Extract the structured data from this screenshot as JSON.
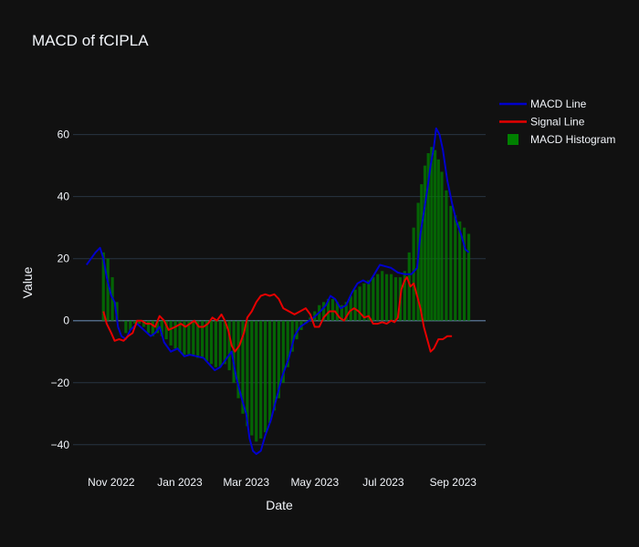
{
  "chart_data": {
    "type": "line",
    "title": "MACD of fCIPLA",
    "xlabel": "Date",
    "ylabel": "Value",
    "ylim": [
      -48,
      74
    ],
    "xlim": [
      "2022-09-28",
      "2023-09-30"
    ],
    "x_ticks": [
      {
        "date": "2022-11-01",
        "label": "Nov 2022"
      },
      {
        "date": "2023-01-01",
        "label": "Jan 2023"
      },
      {
        "date": "2023-03-01",
        "label": "Mar 2023"
      },
      {
        "date": "2023-05-01",
        "label": "May 2023"
      },
      {
        "date": "2023-07-01",
        "label": "Jul 2023"
      },
      {
        "date": "2023-09-01",
        "label": "Sep 2023"
      }
    ],
    "y_ticks": [
      -40,
      -20,
      0,
      20,
      40,
      60
    ],
    "grid": true,
    "legend_position": "top-right",
    "background": "#111111",
    "grid_color": "#283442",
    "series": [
      {
        "name": "MACD Line",
        "kind": "line",
        "color": "#0000cc",
        "points": [
          [
            "2022-10-10",
            18
          ],
          [
            "2022-10-14",
            20
          ],
          [
            "2022-10-18",
            22
          ],
          [
            "2022-10-22",
            23.5
          ],
          [
            "2022-10-25",
            20
          ],
          [
            "2022-10-28",
            14
          ],
          [
            "2022-11-01",
            8
          ],
          [
            "2022-11-04",
            6
          ],
          [
            "2022-11-07",
            -2
          ],
          [
            "2022-11-10",
            -5
          ],
          [
            "2022-11-14",
            -6
          ],
          [
            "2022-11-18",
            -3
          ],
          [
            "2022-11-24",
            -1
          ],
          [
            "2022-11-30",
            -3
          ],
          [
            "2022-12-06",
            -5
          ],
          [
            "2022-12-10",
            -4
          ],
          [
            "2022-12-14",
            -2
          ],
          [
            "2022-12-18",
            -7
          ],
          [
            "2022-12-24",
            -10
          ],
          [
            "2022-12-30",
            -9
          ],
          [
            "2023-01-05",
            -11.5
          ],
          [
            "2023-01-10",
            -11
          ],
          [
            "2023-01-16",
            -11.5
          ],
          [
            "2023-01-22",
            -12
          ],
          [
            "2023-01-27",
            -14
          ],
          [
            "2023-02-01",
            -16
          ],
          [
            "2023-02-06",
            -15
          ],
          [
            "2023-02-12",
            -12
          ],
          [
            "2023-02-16",
            -10
          ],
          [
            "2023-02-20",
            -18
          ],
          [
            "2023-02-25",
            -25
          ],
          [
            "2023-03-01",
            -30
          ],
          [
            "2023-03-04",
            -38
          ],
          [
            "2023-03-07",
            -42
          ],
          [
            "2023-03-10",
            -43
          ],
          [
            "2023-03-14",
            -42
          ],
          [
            "2023-03-18",
            -37
          ],
          [
            "2023-03-23",
            -32
          ],
          [
            "2023-03-28",
            -25
          ],
          [
            "2023-04-02",
            -18
          ],
          [
            "2023-04-08",
            -12
          ],
          [
            "2023-04-13",
            -5
          ],
          [
            "2023-04-18",
            -2
          ],
          [
            "2023-04-24",
            -0.5
          ],
          [
            "2023-04-30",
            1
          ],
          [
            "2023-05-06",
            3
          ],
          [
            "2023-05-11",
            5
          ],
          [
            "2023-05-15",
            8
          ],
          [
            "2023-05-19",
            7
          ],
          [
            "2023-05-24",
            4
          ],
          [
            "2023-05-29",
            5
          ],
          [
            "2023-06-03",
            9
          ],
          [
            "2023-06-08",
            12
          ],
          [
            "2023-06-13",
            13
          ],
          [
            "2023-06-18",
            12
          ],
          [
            "2023-06-23",
            15
          ],
          [
            "2023-06-28",
            18
          ],
          [
            "2023-07-03",
            17.5
          ],
          [
            "2023-07-08",
            17
          ],
          [
            "2023-07-14",
            15.5
          ],
          [
            "2023-07-20",
            15
          ],
          [
            "2023-07-26",
            15
          ],
          [
            "2023-07-31",
            17
          ],
          [
            "2023-08-03",
            28
          ],
          [
            "2023-08-06",
            35
          ],
          [
            "2023-08-09",
            42
          ],
          [
            "2023-08-12",
            50
          ],
          [
            "2023-08-15",
            56
          ],
          [
            "2023-08-17",
            62
          ],
          [
            "2023-08-20",
            60
          ],
          [
            "2023-08-23",
            55
          ],
          [
            "2023-08-27",
            45
          ],
          [
            "2023-08-31",
            38
          ],
          [
            "2023-09-04",
            32
          ],
          [
            "2023-09-08",
            28
          ],
          [
            "2023-09-12",
            23
          ],
          [
            "2023-09-15",
            22
          ]
        ]
      },
      {
        "name": "Signal Line",
        "kind": "line",
        "color": "#e60000",
        "points": [
          [
            "2022-10-25",
            3
          ],
          [
            "2022-10-28",
            -1
          ],
          [
            "2022-11-01",
            -4
          ],
          [
            "2022-11-04",
            -6.5
          ],
          [
            "2022-11-08",
            -6
          ],
          [
            "2022-11-12",
            -6.5
          ],
          [
            "2022-11-16",
            -5
          ],
          [
            "2022-11-20",
            -4
          ],
          [
            "2022-11-24",
            0
          ],
          [
            "2022-11-28",
            0
          ],
          [
            "2022-12-02",
            -1
          ],
          [
            "2022-12-06",
            -1
          ],
          [
            "2022-12-10",
            -2
          ],
          [
            "2022-12-14",
            1.5
          ],
          [
            "2022-12-18",
            0
          ],
          [
            "2022-12-22",
            -3
          ],
          [
            "2022-12-28",
            -2
          ],
          [
            "2023-01-02",
            -1
          ],
          [
            "2023-01-06",
            -2
          ],
          [
            "2023-01-10",
            -1
          ],
          [
            "2023-01-14",
            0
          ],
          [
            "2023-01-18",
            -2
          ],
          [
            "2023-01-22",
            -2
          ],
          [
            "2023-01-26",
            -1
          ],
          [
            "2023-01-30",
            1
          ],
          [
            "2023-02-03",
            0
          ],
          [
            "2023-02-07",
            2
          ],
          [
            "2023-02-10",
            0
          ],
          [
            "2023-02-13",
            -3
          ],
          [
            "2023-02-16",
            -8
          ],
          [
            "2023-02-19",
            -10
          ],
          [
            "2023-02-23",
            -8
          ],
          [
            "2023-02-27",
            -4
          ],
          [
            "2023-03-02",
            1
          ],
          [
            "2023-03-06",
            3
          ],
          [
            "2023-03-10",
            6
          ],
          [
            "2023-03-14",
            8
          ],
          [
            "2023-03-18",
            8.5
          ],
          [
            "2023-03-22",
            8
          ],
          [
            "2023-03-26",
            8.5
          ],
          [
            "2023-03-30",
            7
          ],
          [
            "2023-04-03",
            4
          ],
          [
            "2023-04-08",
            3
          ],
          [
            "2023-04-13",
            2
          ],
          [
            "2023-04-18",
            3
          ],
          [
            "2023-04-23",
            4
          ],
          [
            "2023-04-27",
            2
          ],
          [
            "2023-05-01",
            -2
          ],
          [
            "2023-05-05",
            -2
          ],
          [
            "2023-05-09",
            1
          ],
          [
            "2023-05-14",
            3
          ],
          [
            "2023-05-19",
            3
          ],
          [
            "2023-05-23",
            1
          ],
          [
            "2023-05-27",
            0
          ],
          [
            "2023-06-01",
            3
          ],
          [
            "2023-06-05",
            4
          ],
          [
            "2023-06-09",
            3
          ],
          [
            "2023-06-14",
            1
          ],
          [
            "2023-06-18",
            1.5
          ],
          [
            "2023-06-22",
            -1
          ],
          [
            "2023-06-26",
            -1
          ],
          [
            "2023-06-30",
            -0.5
          ],
          [
            "2023-07-04",
            -1
          ],
          [
            "2023-07-08",
            0
          ],
          [
            "2023-07-11",
            -0.5
          ],
          [
            "2023-07-14",
            1
          ],
          [
            "2023-07-17",
            10
          ],
          [
            "2023-07-20",
            13
          ],
          [
            "2023-07-22",
            14
          ],
          [
            "2023-07-25",
            11
          ],
          [
            "2023-07-28",
            12
          ],
          [
            "2023-07-31",
            8
          ],
          [
            "2023-08-03",
            4
          ],
          [
            "2023-08-06",
            -2
          ],
          [
            "2023-08-09",
            -6
          ],
          [
            "2023-08-12",
            -10
          ],
          [
            "2023-08-15",
            -9
          ],
          [
            "2023-08-19",
            -6
          ],
          [
            "2023-08-23",
            -6
          ],
          [
            "2023-08-27",
            -5
          ],
          [
            "2023-08-31",
            -5
          ]
        ]
      },
      {
        "name": "MACD Histogram",
        "kind": "bar",
        "color": "#008000",
        "points": [
          [
            "2022-10-25",
            22
          ],
          [
            "2022-10-29",
            20
          ],
          [
            "2022-11-02",
            14
          ],
          [
            "2022-11-06",
            6
          ],
          [
            "2022-11-10",
            0
          ],
          [
            "2022-11-14",
            -4
          ],
          [
            "2022-11-18",
            -3
          ],
          [
            "2022-11-22",
            -1
          ],
          [
            "2022-11-26",
            -1
          ],
          [
            "2022-11-30",
            -2
          ],
          [
            "2022-12-04",
            -4
          ],
          [
            "2022-12-08",
            -5
          ],
          [
            "2022-12-12",
            -4
          ],
          [
            "2022-12-16",
            -5
          ],
          [
            "2022-12-20",
            -6
          ],
          [
            "2022-12-24",
            -8
          ],
          [
            "2022-12-28",
            -9
          ],
          [
            "2023-01-01",
            -10
          ],
          [
            "2023-01-05",
            -11
          ],
          [
            "2023-01-09",
            -11
          ],
          [
            "2023-01-13",
            -11
          ],
          [
            "2023-01-17",
            -12
          ],
          [
            "2023-01-21",
            -12
          ],
          [
            "2023-01-25",
            -13
          ],
          [
            "2023-01-29",
            -14
          ],
          [
            "2023-02-02",
            -15
          ],
          [
            "2023-02-06",
            -15
          ],
          [
            "2023-02-10",
            -14
          ],
          [
            "2023-02-14",
            -16
          ],
          [
            "2023-02-18",
            -20
          ],
          [
            "2023-02-22",
            -25
          ],
          [
            "2023-02-26",
            -30
          ],
          [
            "2023-03-02",
            -34
          ],
          [
            "2023-03-06",
            -37
          ],
          [
            "2023-03-10",
            -39
          ],
          [
            "2023-03-14",
            -38
          ],
          [
            "2023-03-18",
            -36
          ],
          [
            "2023-03-22",
            -33
          ],
          [
            "2023-03-26",
            -29
          ],
          [
            "2023-03-30",
            -25
          ],
          [
            "2023-04-03",
            -20
          ],
          [
            "2023-04-07",
            -15
          ],
          [
            "2023-04-11",
            -10
          ],
          [
            "2023-04-15",
            -6
          ],
          [
            "2023-04-19",
            -3
          ],
          [
            "2023-04-23",
            -1
          ],
          [
            "2023-04-27",
            1
          ],
          [
            "2023-05-01",
            3
          ],
          [
            "2023-05-05",
            5
          ],
          [
            "2023-05-09",
            6
          ],
          [
            "2023-05-13",
            7
          ],
          [
            "2023-05-17",
            7
          ],
          [
            "2023-05-21",
            6
          ],
          [
            "2023-05-25",
            5
          ],
          [
            "2023-05-29",
            6
          ],
          [
            "2023-06-02",
            8
          ],
          [
            "2023-06-06",
            10
          ],
          [
            "2023-06-10",
            11
          ],
          [
            "2023-06-14",
            12
          ],
          [
            "2023-06-18",
            13
          ],
          [
            "2023-06-22",
            14
          ],
          [
            "2023-06-26",
            15
          ],
          [
            "2023-06-30",
            16
          ],
          [
            "2023-07-04",
            15
          ],
          [
            "2023-07-08",
            15
          ],
          [
            "2023-07-12",
            14
          ],
          [
            "2023-07-16",
            14
          ],
          [
            "2023-07-20",
            16
          ],
          [
            "2023-07-24",
            22
          ],
          [
            "2023-07-28",
            30
          ],
          [
            "2023-08-01",
            38
          ],
          [
            "2023-08-04",
            44
          ],
          [
            "2023-08-07",
            50
          ],
          [
            "2023-08-10",
            54
          ],
          [
            "2023-08-13",
            56
          ],
          [
            "2023-08-16",
            55
          ],
          [
            "2023-08-19",
            52
          ],
          [
            "2023-08-22",
            48
          ],
          [
            "2023-08-26",
            42
          ],
          [
            "2023-08-30",
            37
          ],
          [
            "2023-09-03",
            34
          ],
          [
            "2023-09-07",
            32
          ],
          [
            "2023-09-11",
            30
          ],
          [
            "2023-09-15",
            28
          ]
        ]
      }
    ]
  }
}
